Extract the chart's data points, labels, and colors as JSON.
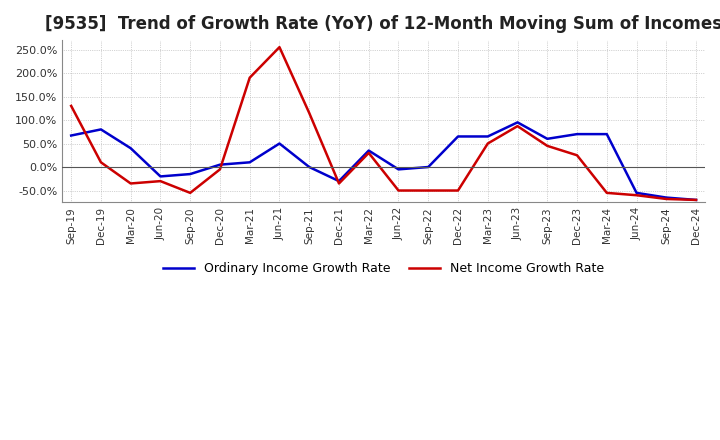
{
  "title": "[9535]  Trend of Growth Rate (YoY) of 12-Month Moving Sum of Incomes",
  "title_fontsize": 12,
  "background_color": "#ffffff",
  "grid_color": "#aaaaaa",
  "ordinary_color": "#0000cc",
  "net_color": "#cc0000",
  "x_labels": [
    "Sep-19",
    "Dec-19",
    "Mar-20",
    "Jun-20",
    "Sep-20",
    "Dec-20",
    "Mar-21",
    "Jun-21",
    "Sep-21",
    "Dec-21",
    "Mar-22",
    "Jun-22",
    "Sep-22",
    "Dec-22",
    "Mar-23",
    "Jun-23",
    "Sep-23",
    "Dec-23",
    "Mar-24",
    "Jun-24",
    "Sep-24",
    "Dec-24"
  ],
  "ordinary_income": [
    67,
    80,
    40,
    -20,
    -15,
    5,
    10,
    50,
    0,
    -30,
    35,
    -5,
    0,
    65,
    65,
    95,
    60,
    70,
    70,
    -55,
    -65,
    -70
  ],
  "net_income": [
    130,
    10,
    -35,
    -30,
    -55,
    -5,
    190,
    255,
    115,
    -35,
    30,
    -50,
    -50,
    -50,
    50,
    87,
    45,
    25,
    -55,
    -60,
    -68,
    -70
  ],
  "ylim": [
    -75,
    270
  ],
  "yticks": [
    -50,
    0,
    50,
    100,
    150,
    200,
    250
  ],
  "legend_ordinary": "Ordinary Income Growth Rate",
  "legend_net": "Net Income Growth Rate",
  "line_width": 1.8
}
